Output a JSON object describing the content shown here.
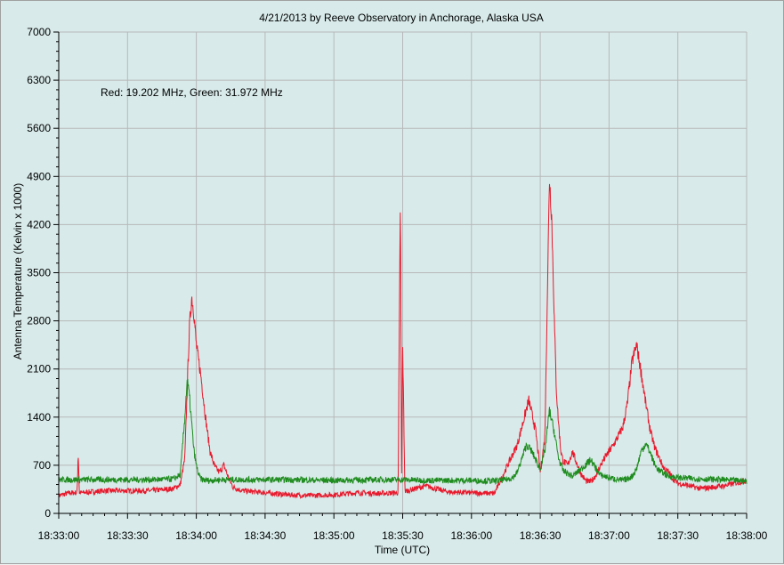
{
  "chart_data": {
    "type": "line",
    "title": "4/21/2013  by  Reeve Observatory  in  Anchorage, Alaska  USA",
    "annotation": "Red: 19.202 MHz, Green: 31.972 MHz",
    "xlabel": "Time (UTC)",
    "ylabel": "Antenna Temperature (Kelvin x 1000)",
    "x_ticks": [
      "18:33:00",
      "18:33:30",
      "18:34:00",
      "18:34:30",
      "18:35:00",
      "18:35:30",
      "18:36:00",
      "18:36:30",
      "18:37:00",
      "18:37:30",
      "18:38:00"
    ],
    "y_ticks": [
      0,
      700,
      1400,
      2100,
      2800,
      3500,
      4200,
      4900,
      5600,
      6300,
      7000
    ],
    "xlim_seconds": [
      0,
      300
    ],
    "ylim": [
      0,
      7000
    ],
    "grid": true,
    "series": [
      {
        "color": "#e8192c",
        "x_seconds": [
          0,
          5,
          8,
          8.5,
          9,
          10,
          20,
          40,
          50,
          53,
          55,
          56,
          57,
          58,
          59,
          60,
          62,
          64,
          66,
          68,
          70,
          72,
          74,
          76,
          80,
          90,
          100,
          110,
          120,
          130,
          140,
          148,
          149,
          149.5,
          150,
          151,
          160,
          170,
          180,
          190,
          200,
          205,
          208,
          210,
          212,
          214,
          215,
          216,
          217,
          218,
          219,
          220,
          222,
          224,
          226,
          228,
          230,
          232,
          234,
          236,
          238,
          240,
          242,
          244,
          246,
          248,
          250,
          252,
          254,
          256,
          258,
          260,
          262,
          264,
          266,
          268,
          270,
          275,
          280,
          290,
          300
        ],
        "values": [
          260,
          300,
          300,
          890,
          300,
          300,
          330,
          330,
          360,
          420,
          800,
          1800,
          2700,
          3150,
          2900,
          2450,
          2000,
          1400,
          900,
          680,
          600,
          700,
          520,
          380,
          330,
          300,
          270,
          260,
          270,
          300,
          290,
          300,
          4650,
          380,
          2400,
          320,
          400,
          310,
          300,
          290,
          1000,
          1650,
          1200,
          600,
          1100,
          4900,
          4300,
          3000,
          1800,
          1300,
          900,
          760,
          700,
          900,
          720,
          560,
          470,
          460,
          540,
          680,
          800,
          900,
          1000,
          1120,
          1250,
          1600,
          2200,
          2450,
          2050,
          1600,
          1200,
          950,
          800,
          650,
          600,
          500,
          440,
          400,
          360,
          400,
          480
        ]
      },
      {
        "color": "#1e8c1e",
        "x_seconds": [
          0,
          20,
          40,
          50,
          53,
          55,
          56,
          57,
          58,
          59,
          60,
          61,
          62,
          64,
          66,
          70,
          80,
          100,
          120,
          140,
          150,
          160,
          180,
          190,
          195,
          198,
          200,
          202,
          204,
          206,
          208,
          210,
          212,
          214,
          216,
          218,
          220,
          224,
          228,
          232,
          236,
          240,
          244,
          246,
          248,
          250,
          252,
          254,
          256,
          258,
          260,
          262,
          266,
          270,
          280,
          290,
          300
        ],
        "values": [
          490,
          490,
          490,
          500,
          560,
          1400,
          1950,
          1700,
          1300,
          900,
          700,
          560,
          500,
          480,
          480,
          490,
          490,
          490,
          480,
          490,
          490,
          480,
          480,
          470,
          490,
          520,
          600,
          800,
          1000,
          920,
          780,
          640,
          900,
          1500,
          1200,
          800,
          620,
          540,
          650,
          780,
          560,
          520,
          490,
          480,
          500,
          540,
          650,
          900,
          1020,
          880,
          700,
          620,
          540,
          520,
          500,
          490,
          470
        ]
      }
    ]
  }
}
